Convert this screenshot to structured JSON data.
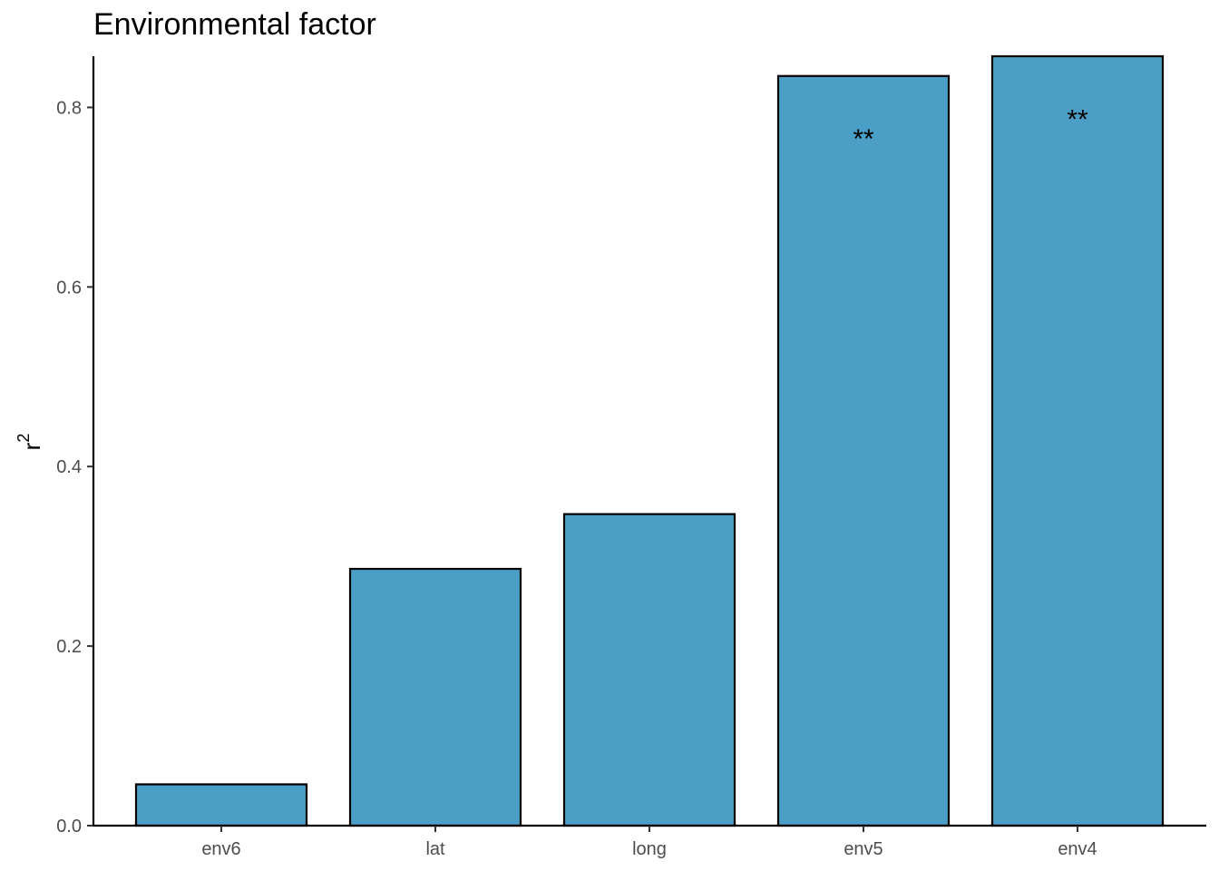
{
  "chart_data": {
    "type": "bar",
    "title": "Environmental factor",
    "xlabel": "",
    "ylabel": "r",
    "ylabel_superscript": "2",
    "categories": [
      "env6",
      "lat",
      "long",
      "env5",
      "env4"
    ],
    "values": [
      0.046,
      0.286,
      0.347,
      0.835,
      0.857
    ],
    "annotations": [
      "",
      "",
      "",
      "**",
      "**"
    ],
    "ylim": [
      0,
      0.857
    ],
    "yticks": [
      0.0,
      0.2,
      0.4,
      0.6,
      0.8
    ],
    "ytick_labels": [
      "0.0",
      "0.2",
      "0.4",
      "0.6",
      "0.8"
    ],
    "grid": false,
    "bar_color": "#4b9fc7",
    "bar_edge_color": "#000000"
  }
}
